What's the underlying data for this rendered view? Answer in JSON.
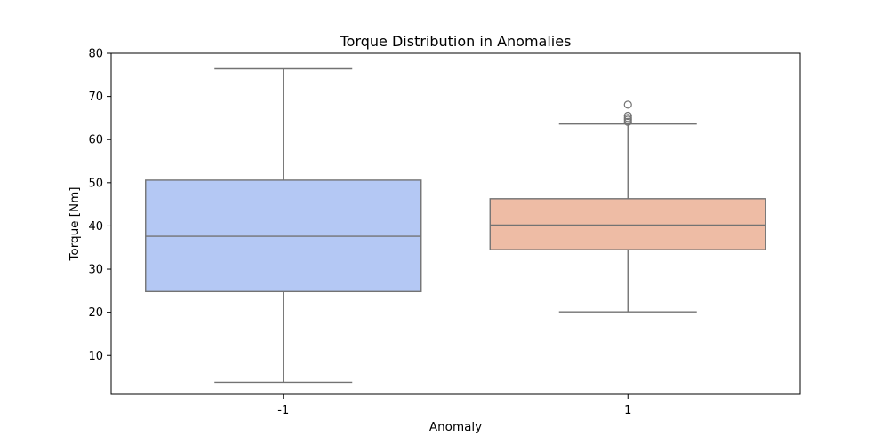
{
  "chart_data": {
    "type": "box",
    "title": "Torque Distribution in Anomalies",
    "xlabel": "Anomaly",
    "ylabel": "Torque [Nm]",
    "ylim": [
      1,
      80
    ],
    "yticks": [
      10,
      20,
      30,
      40,
      50,
      60,
      70,
      80
    ],
    "grid": false,
    "categories": [
      "-1",
      "1"
    ],
    "boxes": [
      {
        "category": "-1",
        "whisker_low": 3.8,
        "q1": 24.8,
        "median": 37.6,
        "q3": 50.6,
        "whisker_high": 76.4,
        "outliers": [],
        "color": "#b4c8f4"
      },
      {
        "category": "1",
        "whisker_low": 20.1,
        "q1": 34.5,
        "median": 40.2,
        "q3": 46.3,
        "whisker_high": 63.6,
        "outliers": [
          64.1,
          64.6,
          65.0,
          65.5,
          68.1
        ],
        "color": "#eebca5"
      }
    ],
    "line_color": "#737373"
  }
}
